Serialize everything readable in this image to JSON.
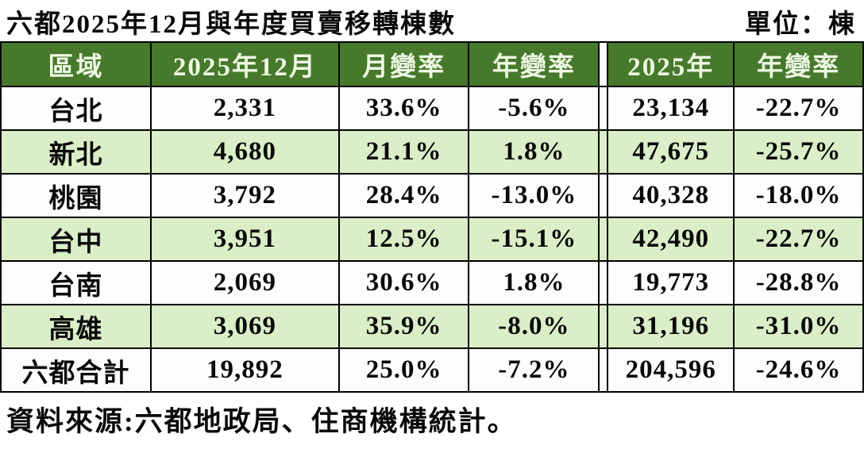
{
  "header": {
    "title": "六都2025年12月與年度買賣移轉棟數",
    "unit_label": "單位：棟"
  },
  "source_note": "資料來源:六都地政局、住商機構統計。",
  "colors": {
    "header_bg": "#47792c",
    "header_text": "#edf8e3",
    "row_alt_bg": "#daeec8",
    "row_bg": "#fdfdfd",
    "border": "#000000",
    "text": "#0a0a0a"
  },
  "chart_data": {
    "type": "table",
    "title": "六都2025年12月與年度買賣移轉棟數",
    "unit": "單位：棟",
    "columns": [
      "區域",
      "2025年12月",
      "月變率",
      "年變率",
      "2025年",
      "年變率"
    ],
    "rows": [
      {
        "region": "台北",
        "dec_2025": "2,331",
        "mom_change": "33.6%",
        "yoy_change": "-5.6%",
        "year_2025": "23,134",
        "year_yoy_change": "-22.7%"
      },
      {
        "region": "新北",
        "dec_2025": "4,680",
        "mom_change": "21.1%",
        "yoy_change": "1.8%",
        "year_2025": "47,675",
        "year_yoy_change": "-25.7%"
      },
      {
        "region": "桃園",
        "dec_2025": "3,792",
        "mom_change": "28.4%",
        "yoy_change": "-13.0%",
        "year_2025": "40,328",
        "year_yoy_change": "-18.0%"
      },
      {
        "region": "台中",
        "dec_2025": "3,951",
        "mom_change": "12.5%",
        "yoy_change": "-15.1%",
        "year_2025": "42,490",
        "year_yoy_change": "-22.7%"
      },
      {
        "region": "台南",
        "dec_2025": "2,069",
        "mom_change": "30.6%",
        "yoy_change": "1.8%",
        "year_2025": "19,773",
        "year_yoy_change": "-28.8%"
      },
      {
        "region": "高雄",
        "dec_2025": "3,069",
        "mom_change": "35.9%",
        "yoy_change": "-8.0%",
        "year_2025": "31,196",
        "year_yoy_change": "-31.0%"
      },
      {
        "region": "六都合計",
        "dec_2025": "19,892",
        "mom_change": "25.0%",
        "yoy_change": "-7.2%",
        "year_2025": "204,596",
        "year_yoy_change": "-24.6%"
      }
    ],
    "source": "資料來源:六都地政局、住商機構統計。",
    "layout": {
      "column_group_divider_after_column_index": 3,
      "striped_rows": true,
      "header_style": "dark-green-with-pale-text"
    }
  }
}
